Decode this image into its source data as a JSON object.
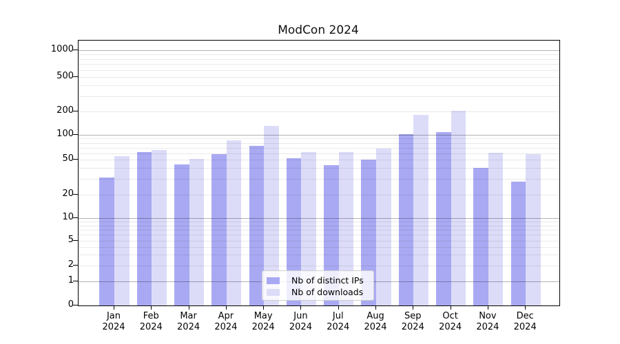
{
  "title": "ModCon 2024",
  "chart_data": {
    "type": "bar",
    "title": "ModCon 2024",
    "categories": [
      "Jan 2024",
      "Feb 2024",
      "Mar 2024",
      "Apr 2024",
      "May 2024",
      "Jun 2024",
      "Jul 2024",
      "Aug 2024",
      "Sep 2024",
      "Oct 2024",
      "Nov 2024",
      "Dec 2024"
    ],
    "series": [
      {
        "name": "Nb of distinct IPs",
        "color": "#a9a9f3",
        "values": [
          31,
          62,
          44,
          58,
          74,
          52,
          43,
          50,
          102,
          108,
          40,
          28
        ]
      },
      {
        "name": "Nb of downloads",
        "color": "#dcdcf9",
        "values": [
          55,
          65,
          51,
          85,
          130,
          62,
          62,
          68,
          180,
          205,
          61,
          58
        ]
      }
    ],
    "xlabel": "",
    "ylabel": "",
    "yscale": "symlog",
    "yticks": [
      0,
      1,
      2,
      5,
      10,
      20,
      50,
      100,
      200,
      500,
      1000
    ],
    "ylim": [
      0,
      1300
    ],
    "grid": "horizontal major+minor",
    "legend_position": "lower center inside plot"
  },
  "legend": {
    "items": [
      "Nb of distinct IPs",
      "Nb of downloads"
    ]
  }
}
